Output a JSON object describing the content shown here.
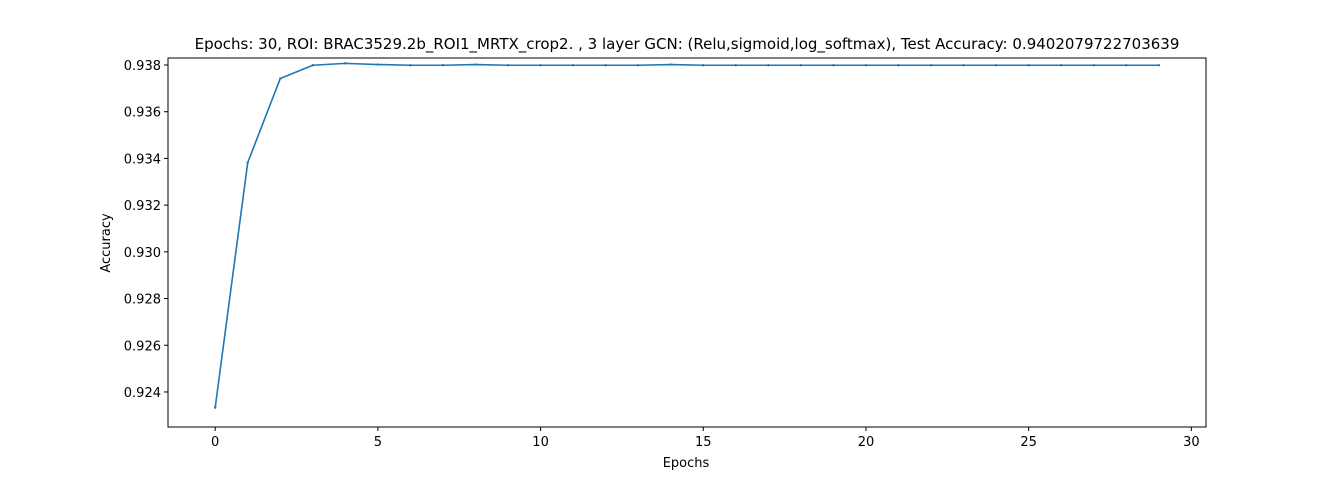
{
  "chart_data": {
    "type": "line",
    "title": "Epochs: 30, ROI: BRAC3529.2b_ROI1_MRTX_crop2. , 3 layer GCN: (Relu,sigmoid,log_softmax), Test Accuracy: 0.9402079722703639",
    "xlabel": "Epochs",
    "ylabel": "Accuracy",
    "xlim": [
      -1.45,
      30.45
    ],
    "ylim": [
      0.9225,
      0.9383
    ],
    "x_ticks": [
      0,
      5,
      10,
      15,
      20,
      25,
      30
    ],
    "y_ticks": [
      0.924,
      0.926,
      0.928,
      0.93,
      0.932,
      0.934,
      0.936,
      0.938
    ],
    "grid": false,
    "series": [
      {
        "color": "#1f77b4",
        "x": [
          0,
          1,
          2,
          3,
          4,
          5,
          6,
          7,
          8,
          9,
          10,
          11,
          12,
          13,
          14,
          15,
          16,
          17,
          18,
          19,
          20,
          21,
          22,
          23,
          24,
          25,
          26,
          27,
          28,
          29
        ],
        "y": [
          0.92333,
          0.93382,
          0.93742,
          0.93799,
          0.93807,
          0.93802,
          0.93799,
          0.93799,
          0.93802,
          0.93799,
          0.93799,
          0.93799,
          0.93799,
          0.93799,
          0.93802,
          0.93799,
          0.93799,
          0.93799,
          0.93799,
          0.93799,
          0.93799,
          0.93799,
          0.93799,
          0.93799,
          0.93799,
          0.93799,
          0.93799,
          0.93799,
          0.93799,
          0.93799
        ]
      }
    ]
  }
}
